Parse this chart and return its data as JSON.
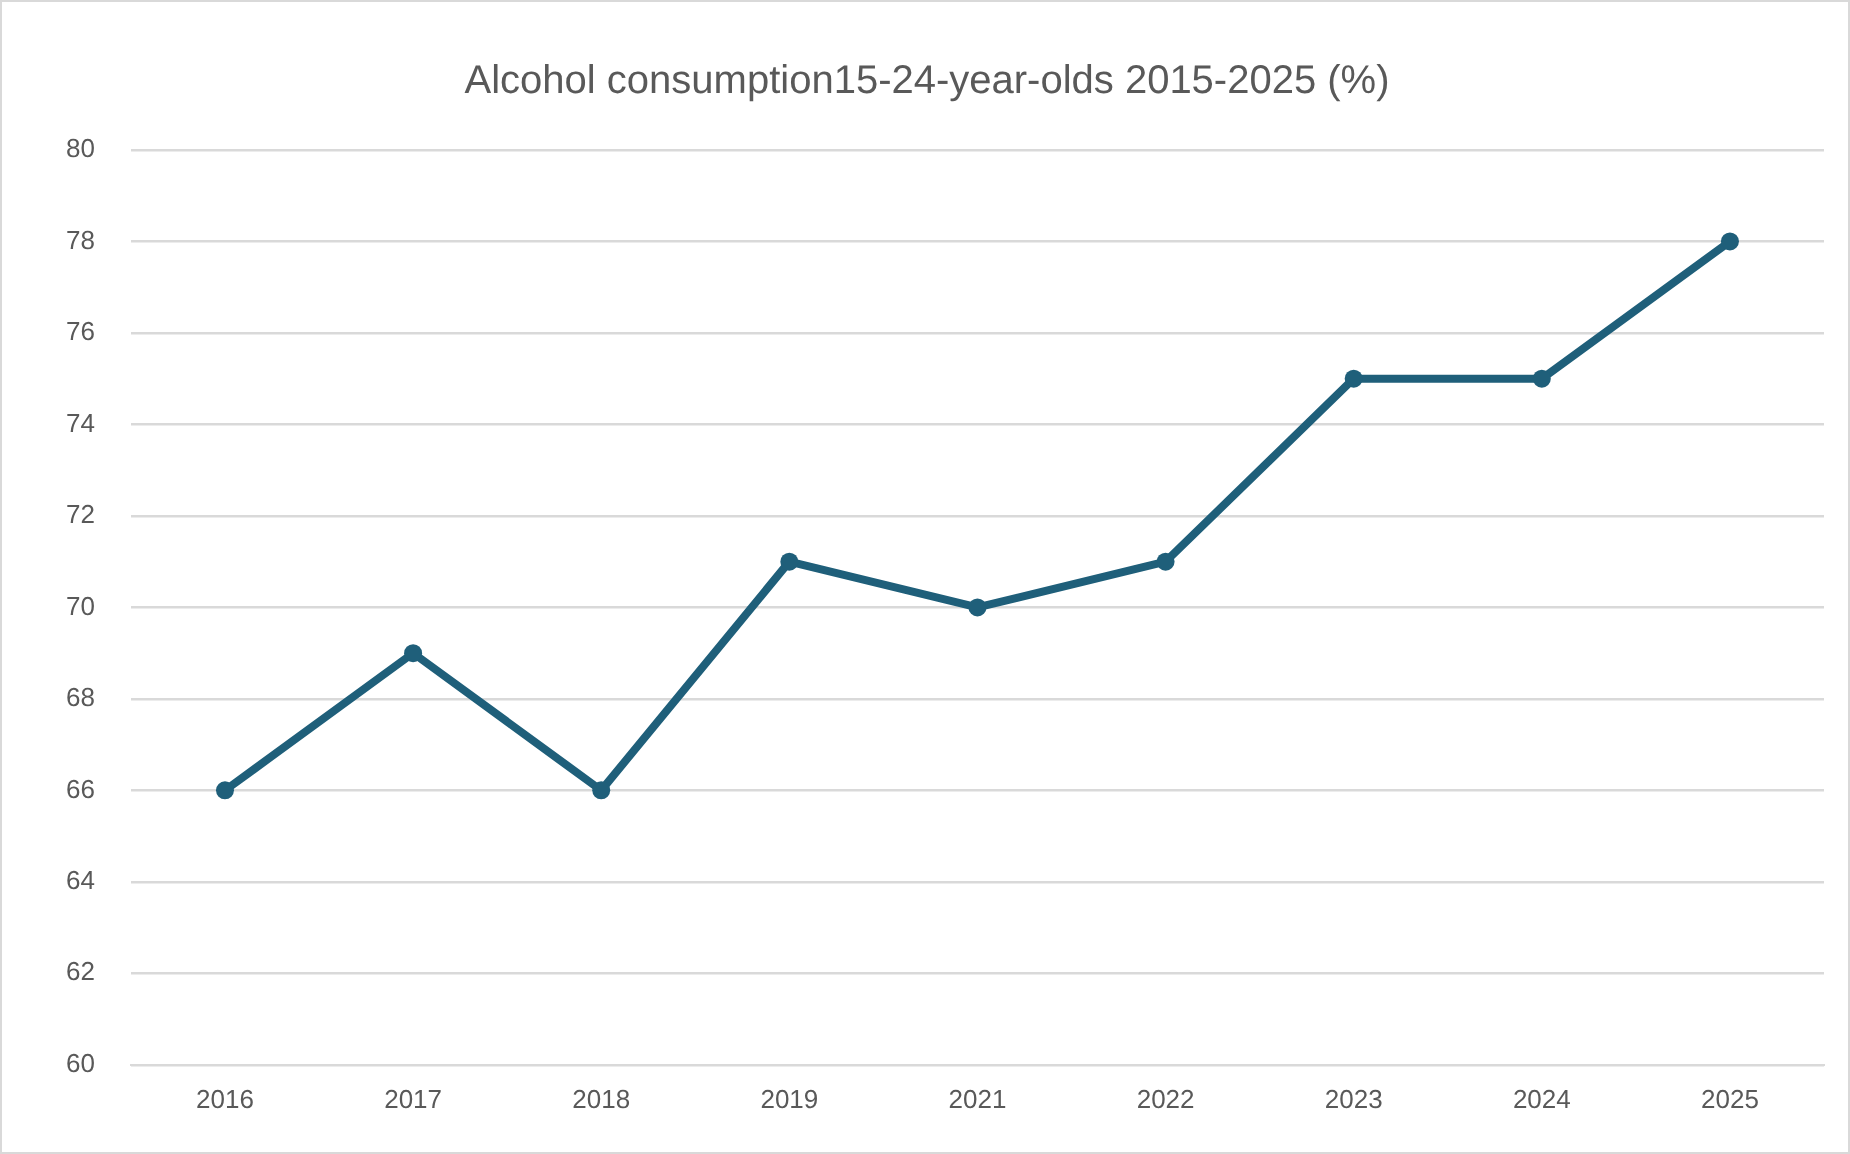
{
  "chart_data": {
    "type": "line",
    "title": "Alcohol consumption15-24-year-olds 2015-2025 (%)",
    "categories": [
      "2016",
      "2017",
      "2018",
      "2019",
      "2021",
      "2022",
      "2023",
      "2024",
      "2025"
    ],
    "series": [
      {
        "color": "#1f5f7a",
        "values": [
          66,
          69,
          66,
          71,
          70,
          71,
          75,
          75,
          78
        ]
      }
    ],
    "ylim": [
      60,
      80
    ],
    "yticks": [
      60,
      62,
      64,
      66,
      68,
      70,
      72,
      74,
      76,
      78,
      80
    ],
    "grid": "y",
    "legend": false,
    "marker": "circle",
    "line_style": "solid"
  }
}
